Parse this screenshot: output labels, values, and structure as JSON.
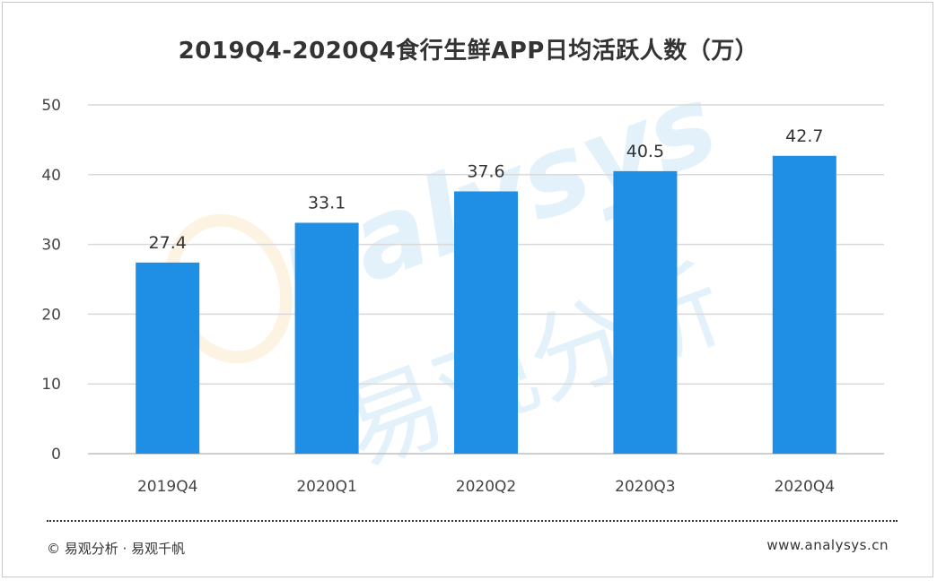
{
  "chart_data": {
    "type": "bar",
    "title": "2019Q4-2020Q4食行生鲜APP日均活跃人数（万）",
    "categories": [
      "2019Q4",
      "2020Q1",
      "2020Q2",
      "2020Q3",
      "2020Q4"
    ],
    "values": [
      27.4,
      33.1,
      37.6,
      40.5,
      42.7
    ],
    "value_labels": [
      "27.4",
      "33.1",
      "37.6",
      "40.5",
      "42.7"
    ],
    "yticks": [
      "0",
      "10",
      "20",
      "30",
      "40",
      "50"
    ],
    "ylim": [
      0,
      50
    ],
    "grid": true,
    "bar_color": "#1f8fe5",
    "watermark": "analysys 易观分析"
  },
  "footer": {
    "source": "© 易观分析 · 易观千帆",
    "site": "www.analysys.cn"
  }
}
